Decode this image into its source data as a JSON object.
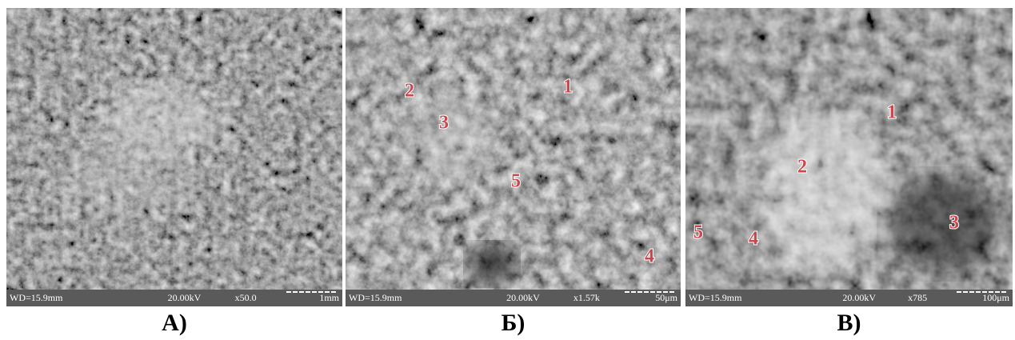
{
  "panels": [
    {
      "info": {
        "wd": "WD=15.9mm",
        "voltage": "20.00kV",
        "magnification": "x50.0",
        "scale": "1mm"
      },
      "points": [],
      "caption": "А)"
    },
    {
      "info": {
        "wd": "WD=15.9mm",
        "voltage": "20.00kV",
        "magnification": "x1.57k",
        "scale": "50μm"
      },
      "points": [
        "1",
        "2",
        "3",
        "4",
        "5"
      ],
      "caption": "Б)"
    },
    {
      "info": {
        "wd": "WD=15.9mm",
        "voltage": "20.00kV",
        "magnification": "x785",
        "scale": "100μm"
      },
      "points": [
        "1",
        "2",
        "3",
        "4",
        "5"
      ],
      "caption": "В)"
    }
  ]
}
